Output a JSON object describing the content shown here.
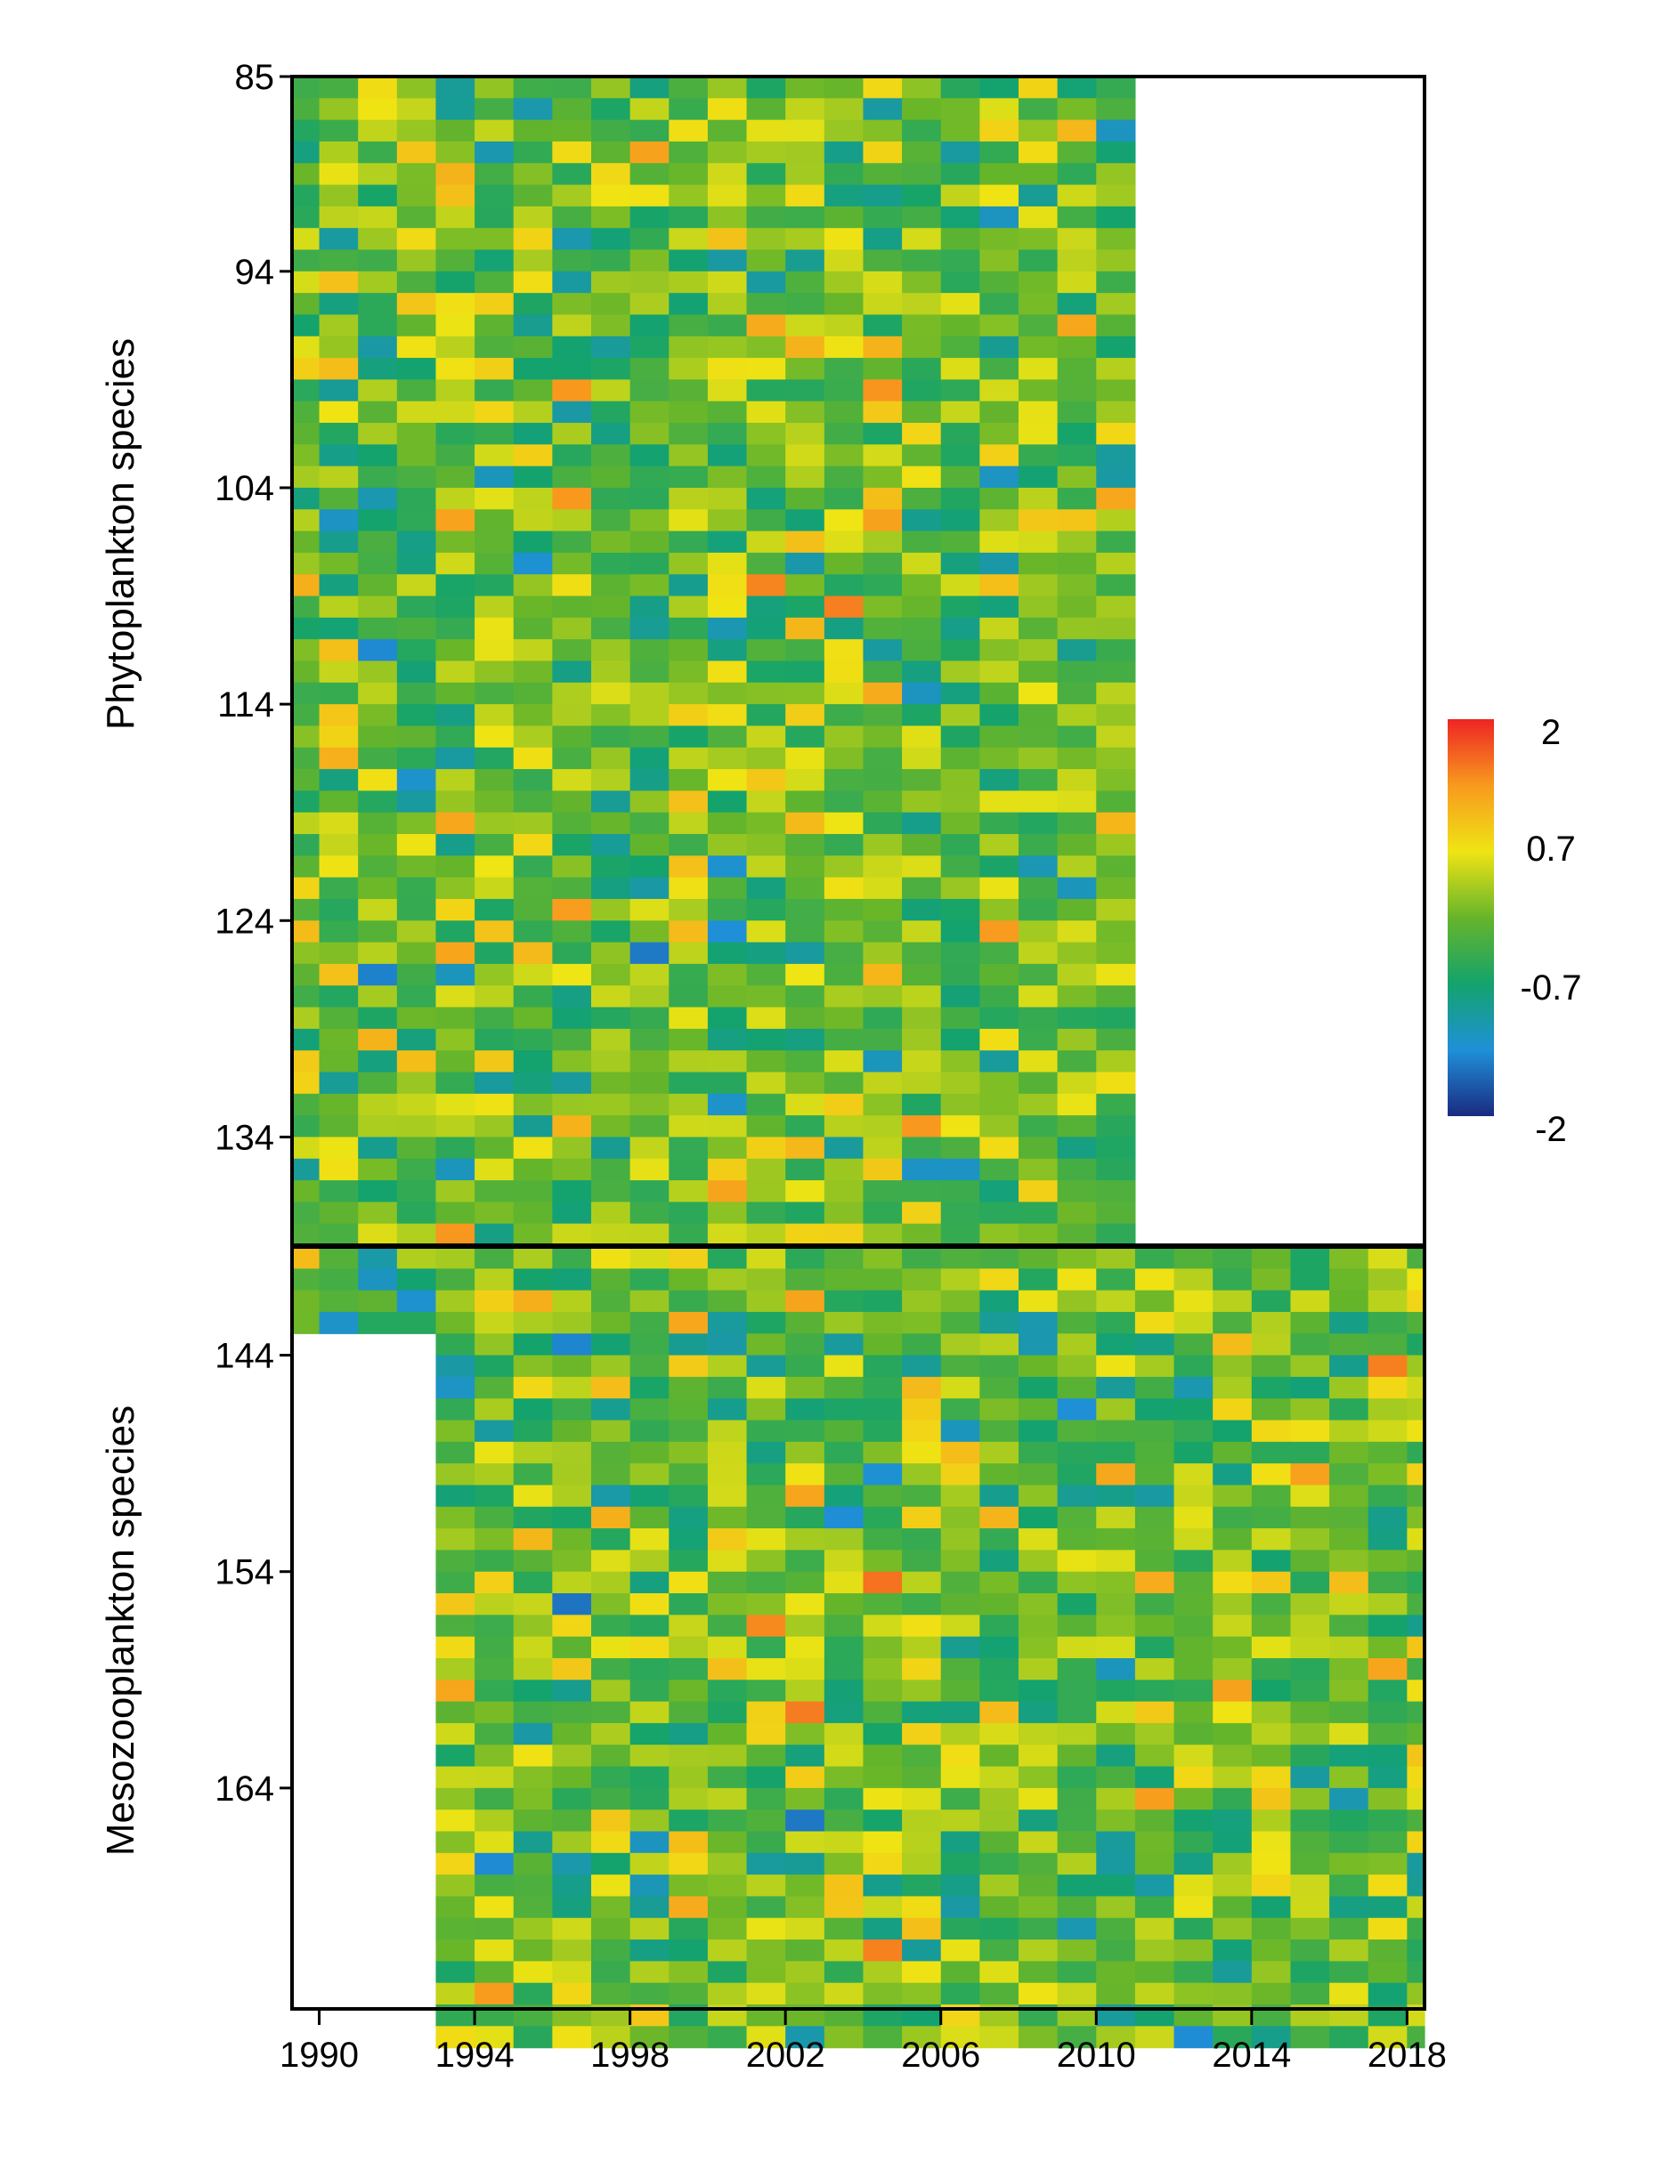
{
  "chart_data": {
    "type": "heatmap",
    "title": "",
    "xlabel": "",
    "x_range": [
      1989.3,
      2018.45
    ],
    "x_ticks": [
      1990,
      1994,
      1998,
      2002,
      2006,
      2010,
      2014,
      2018
    ],
    "x_tick_labels": [
      "1990",
      "1994",
      "1998",
      "2002",
      "2006",
      "2010",
      "2014",
      "2018"
    ],
    "panels": [
      {
        "ylabel": "Phytoplankton species",
        "y_range": [
          85,
          138
        ],
        "y_ticks": [
          85,
          94,
          104,
          114,
          124,
          134
        ],
        "y_tick_labels": [
          "85",
          "94",
          "104",
          "114",
          "124",
          "134"
        ],
        "years_observed": [
          1989,
          2010
        ]
      },
      {
        "ylabel": "Mesozooplankton species",
        "y_range": [
          139,
          175
        ],
        "y_ticks": [
          144,
          154,
          164
        ],
        "y_tick_labels": [
          "144",
          "154",
          "164"
        ],
        "years_observed": [
          1989,
          2018
        ],
        "partial_rows": [
          139,
          142
        ],
        "partial_rows_start_year": 1993
      }
    ],
    "colorbar": {
      "range": [
        -2,
        2
      ],
      "ticks": [
        2,
        0.7,
        -0.7,
        -2
      ],
      "tick_labels": [
        "2",
        "0.7",
        "-0.7",
        "-2"
      ],
      "colors": [
        "#1a2a80",
        "#1f90d8",
        "#14a36c",
        "#66b52a",
        "#efe414",
        "#f89a1e",
        "#ee2424"
      ]
    }
  }
}
